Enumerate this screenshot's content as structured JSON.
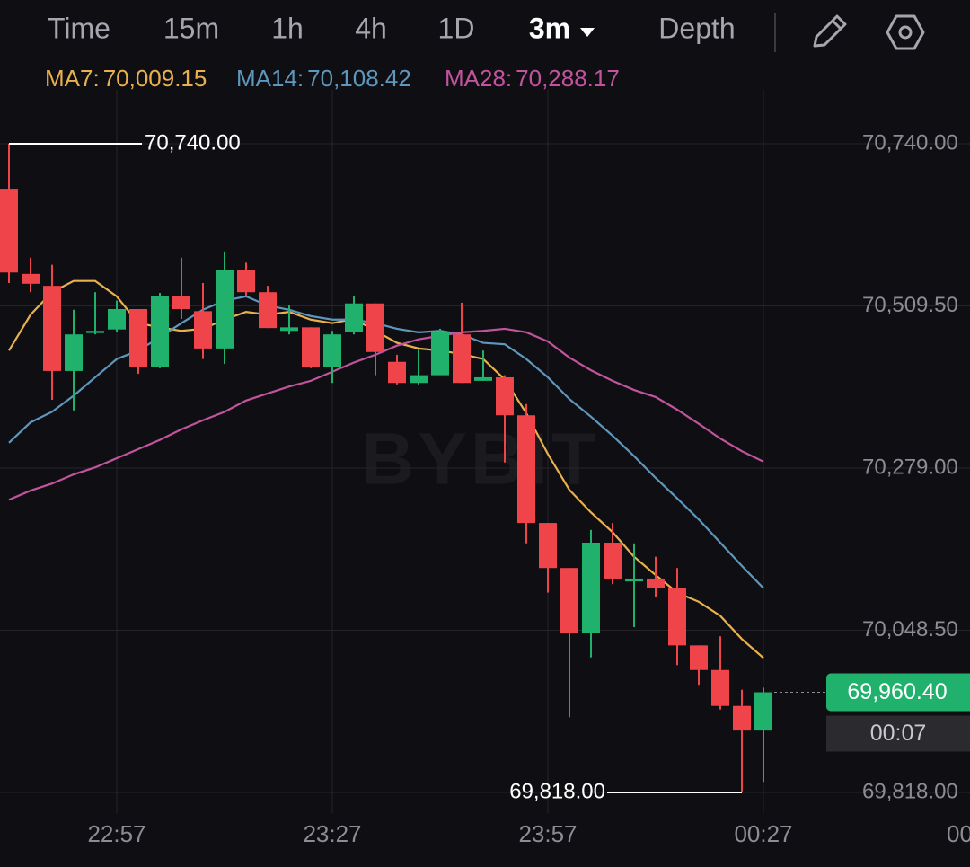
{
  "toolbar": {
    "tabs": [
      "Time",
      "15m",
      "1h",
      "4h",
      "1D",
      "3m",
      "Depth"
    ],
    "active": 5
  },
  "chart_data": {
    "type": "candlestick",
    "watermark": "BYBIT",
    "categories": [
      null,
      null,
      null,
      null,
      null,
      "22:57",
      null,
      null,
      null,
      null,
      null,
      null,
      null,
      null,
      null,
      "23:27",
      null,
      null,
      null,
      null,
      null,
      null,
      null,
      null,
      null,
      "23:57",
      null,
      null,
      null,
      null,
      null,
      null,
      null,
      null,
      null,
      "00:27"
    ],
    "x_edge_label": "00",
    "open": [
      70676,
      70555,
      70538,
      70417,
      70471,
      70476,
      70505,
      70423,
      70523,
      70502,
      70449,
      70561,
      70529,
      70474,
      70479,
      70423,
      70472,
      70513,
      70430,
      70400,
      70411,
      70469,
      70403,
      70408,
      70354,
      70201,
      70137,
      70045,
      70173,
      70118,
      70122,
      70109,
      70027,
      69992,
      69941,
      69906
    ],
    "high": [
      70740,
      70578,
      70568,
      70504,
      70529,
      70517,
      70505,
      70528,
      70578,
      70542,
      70587,
      70571,
      70538,
      70510,
      70479,
      70474,
      70523,
      70513,
      70440,
      70449,
      70477,
      70514,
      70446,
      70411,
      70370,
      70201,
      70137,
      70191,
      70201,
      70172,
      70153,
      70137,
      70027,
      70040,
      69964,
      69967
    ],
    "low": [
      70542,
      70529,
      70376,
      70361,
      70469,
      70472,
      70413,
      70421,
      70491,
      70434,
      70427,
      70523,
      70478,
      70469,
      70421,
      70400,
      70469,
      70411,
      70398,
      70398,
      70411,
      70400,
      70403,
      70287,
      70172,
      70102,
      69925,
      70010,
      70114,
      70053,
      70096,
      69999,
      69971,
      69936,
      69818,
      69833
    ],
    "close": [
      70557,
      70541,
      70417,
      70469,
      70474,
      70505,
      70423,
      70523,
      70505,
      70449,
      70561,
      70529,
      70478,
      70479,
      70423,
      70469,
      70513,
      70444,
      70400,
      70411,
      70472,
      70400,
      70408,
      70354,
      70201,
      70137,
      70045,
      70173,
      70122,
      70122,
      70109,
      70027,
      69992,
      69941,
      69906,
      69960.4
    ],
    "up_color": "#20b26c",
    "down_color": "#ef454a",
    "lines": [
      {
        "name": "MA7:",
        "color": "#e9b14e",
        "current_label": "70,009.15",
        "values": [
          70446,
          70497,
          70529,
          70545,
          70545,
          70523,
          70485,
          70479,
          70474,
          70477,
          70490,
          70501,
          70497,
          70501,
          70490,
          70485,
          70491,
          70474,
          70457,
          70449,
          70446,
          70441,
          70434,
          70405,
          70357,
          70299,
          70248,
          70216,
          70188,
          70153,
          70127,
          70102,
          70089,
          70069,
          70036,
          70009.15
        ]
      },
      {
        "name": "MA14:",
        "color": "#5e97bd",
        "current_label": "70,108.42",
        "values": [
          70315,
          70344,
          70359,
          70382,
          70408,
          70434,
          70446,
          70465,
          70485,
          70504,
          70517,
          70523,
          70510,
          70504,
          70495,
          70490,
          70490,
          70485,
          70477,
          70472,
          70474,
          70469,
          70457,
          70455,
          70434,
          70408,
          70377,
          70352,
          70325,
          70296,
          70265,
          70236,
          70206,
          70173,
          70140,
          70108.42
        ]
      },
      {
        "name": "MA28:",
        "color": "#c2549e",
        "current_label": "70,288.17",
        "values": [
          70234,
          70247,
          70257,
          70270,
          70280,
          70293,
          70306,
          70319,
          70334,
          70347,
          70359,
          70375,
          70385,
          70395,
          70403,
          70416,
          70429,
          70440,
          70453,
          70462,
          70467,
          70472,
          70474,
          70477,
          70472,
          70459,
          70436,
          70418,
          70403,
          70390,
          70380,
          70362,
          70342,
          70321,
          70303,
          70288.17
        ]
      }
    ],
    "ylim": [
      69780,
      70820
    ],
    "yticks": [
      {
        "value": 69818,
        "label": "69,818.00"
      },
      {
        "value": 70048.5,
        "label": "70,048.50"
      },
      {
        "value": 70279,
        "label": "70,279.00"
      },
      {
        "value": 70509.5,
        "label": "70,509.50"
      },
      {
        "value": 70740,
        "label": "70,740.00"
      }
    ],
    "grid": true,
    "high_marker": {
      "value": 70740,
      "label": "70,740.00"
    },
    "low_marker": {
      "value": 69818,
      "label": "69,818.00"
    },
    "last_price": {
      "value": 69960.4,
      "label": "69,960.40",
      "color": "#20b26c"
    },
    "countdown": "00:07"
  }
}
